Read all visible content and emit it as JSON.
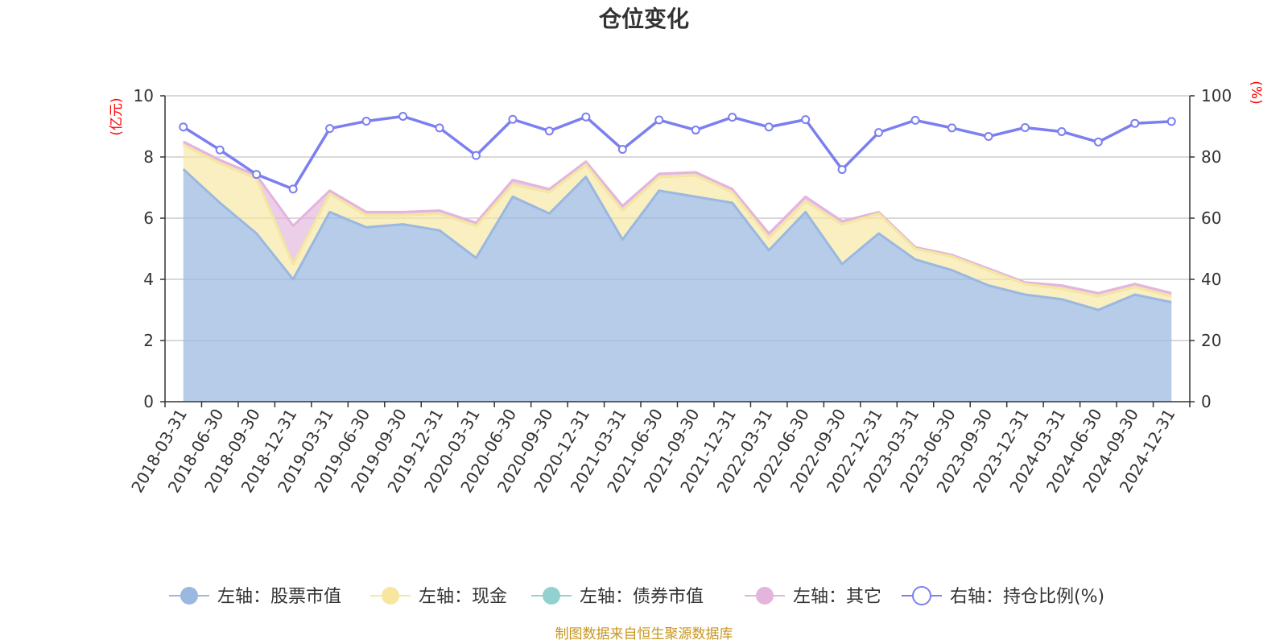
{
  "chart_data": {
    "type": "area",
    "title": "仓位变化",
    "source": "制图数据来自恒生聚源数据库",
    "left_axis": {
      "unit": "(亿元)",
      "range": [
        0,
        10
      ],
      "ticks": [
        "0",
        "2",
        "4",
        "6",
        "8",
        "10"
      ]
    },
    "right_axis": {
      "unit": "(%)",
      "range": [
        0,
        100
      ],
      "ticks": [
        "0",
        "20",
        "40",
        "60",
        "80",
        "100"
      ]
    },
    "categories": [
      "2018-03-31",
      "2018-06-30",
      "2018-09-30",
      "2018-12-31",
      "2019-03-31",
      "2019-06-30",
      "2019-09-30",
      "2019-12-31",
      "2020-03-31",
      "2020-06-30",
      "2020-09-30",
      "2020-12-31",
      "2021-03-31",
      "2021-06-30",
      "2021-09-30",
      "2021-12-31",
      "2022-03-31",
      "2022-06-30",
      "2022-09-30",
      "2022-12-31",
      "2023-03-31",
      "2023-06-30",
      "2023-09-30",
      "2023-12-31",
      "2024-03-31",
      "2024-06-30",
      "2024-09-30",
      "2024-12-31"
    ],
    "series": [
      {
        "name": "左轴：股票市值",
        "axis": "left",
        "color": "#9ab8e0",
        "values": [
          7.6,
          6.5,
          5.5,
          4.0,
          6.2,
          5.7,
          5.8,
          5.6,
          4.7,
          6.7,
          6.15,
          7.35,
          5.3,
          6.9,
          6.7,
          6.5,
          4.95,
          6.2,
          4.5,
          5.5,
          4.65,
          4.3,
          3.8,
          3.5,
          3.35,
          3.0,
          3.5,
          3.25
        ]
      },
      {
        "name": "左轴：现金",
        "axis": "left",
        "color": "#f7e6a0",
        "values": [
          0.8,
          1.3,
          1.8,
          0.5,
          0.6,
          0.4,
          0.3,
          0.55,
          1.05,
          0.4,
          0.7,
          0.4,
          0.95,
          0.45,
          0.7,
          0.35,
          0.4,
          0.35,
          1.3,
          0.65,
          0.35,
          0.45,
          0.5,
          0.35,
          0.35,
          0.45,
          0.25,
          0.2
        ]
      },
      {
        "name": "左轴：债券市值",
        "axis": "left",
        "color": "#93d0d0",
        "values": [
          0,
          0,
          0,
          0,
          0,
          0,
          0,
          0,
          0,
          0,
          0,
          0,
          0,
          0,
          0,
          0,
          0,
          0,
          0,
          0,
          0,
          0,
          0,
          0,
          0,
          0,
          0,
          0
        ]
      },
      {
        "name": "左轴：其它",
        "axis": "left",
        "color": "#e4b4dc",
        "values": [
          0.1,
          0.1,
          0.1,
          1.25,
          0.1,
          0.1,
          0.1,
          0.1,
          0.1,
          0.15,
          0.1,
          0.1,
          0.15,
          0.1,
          0.1,
          0.1,
          0.15,
          0.15,
          0.1,
          0.05,
          0.05,
          0.05,
          0.05,
          0.05,
          0.1,
          0.1,
          0.1,
          0.1
        ]
      },
      {
        "name": "右轴：持仓比例(%)",
        "axis": "right",
        "color": "#7b7ff0",
        "values": [
          89.8,
          82.3,
          74.3,
          69.5,
          89.3,
          91.7,
          93.3,
          89.5,
          80.5,
          92.3,
          88.5,
          93.1,
          82.5,
          92.1,
          88.8,
          93.0,
          89.8,
          92.2,
          75.9,
          88.0,
          92.0,
          89.5,
          86.7,
          89.6,
          88.3,
          84.9,
          91.0,
          91.6
        ]
      }
    ],
    "legend_position": "bottom",
    "grid": true
  }
}
